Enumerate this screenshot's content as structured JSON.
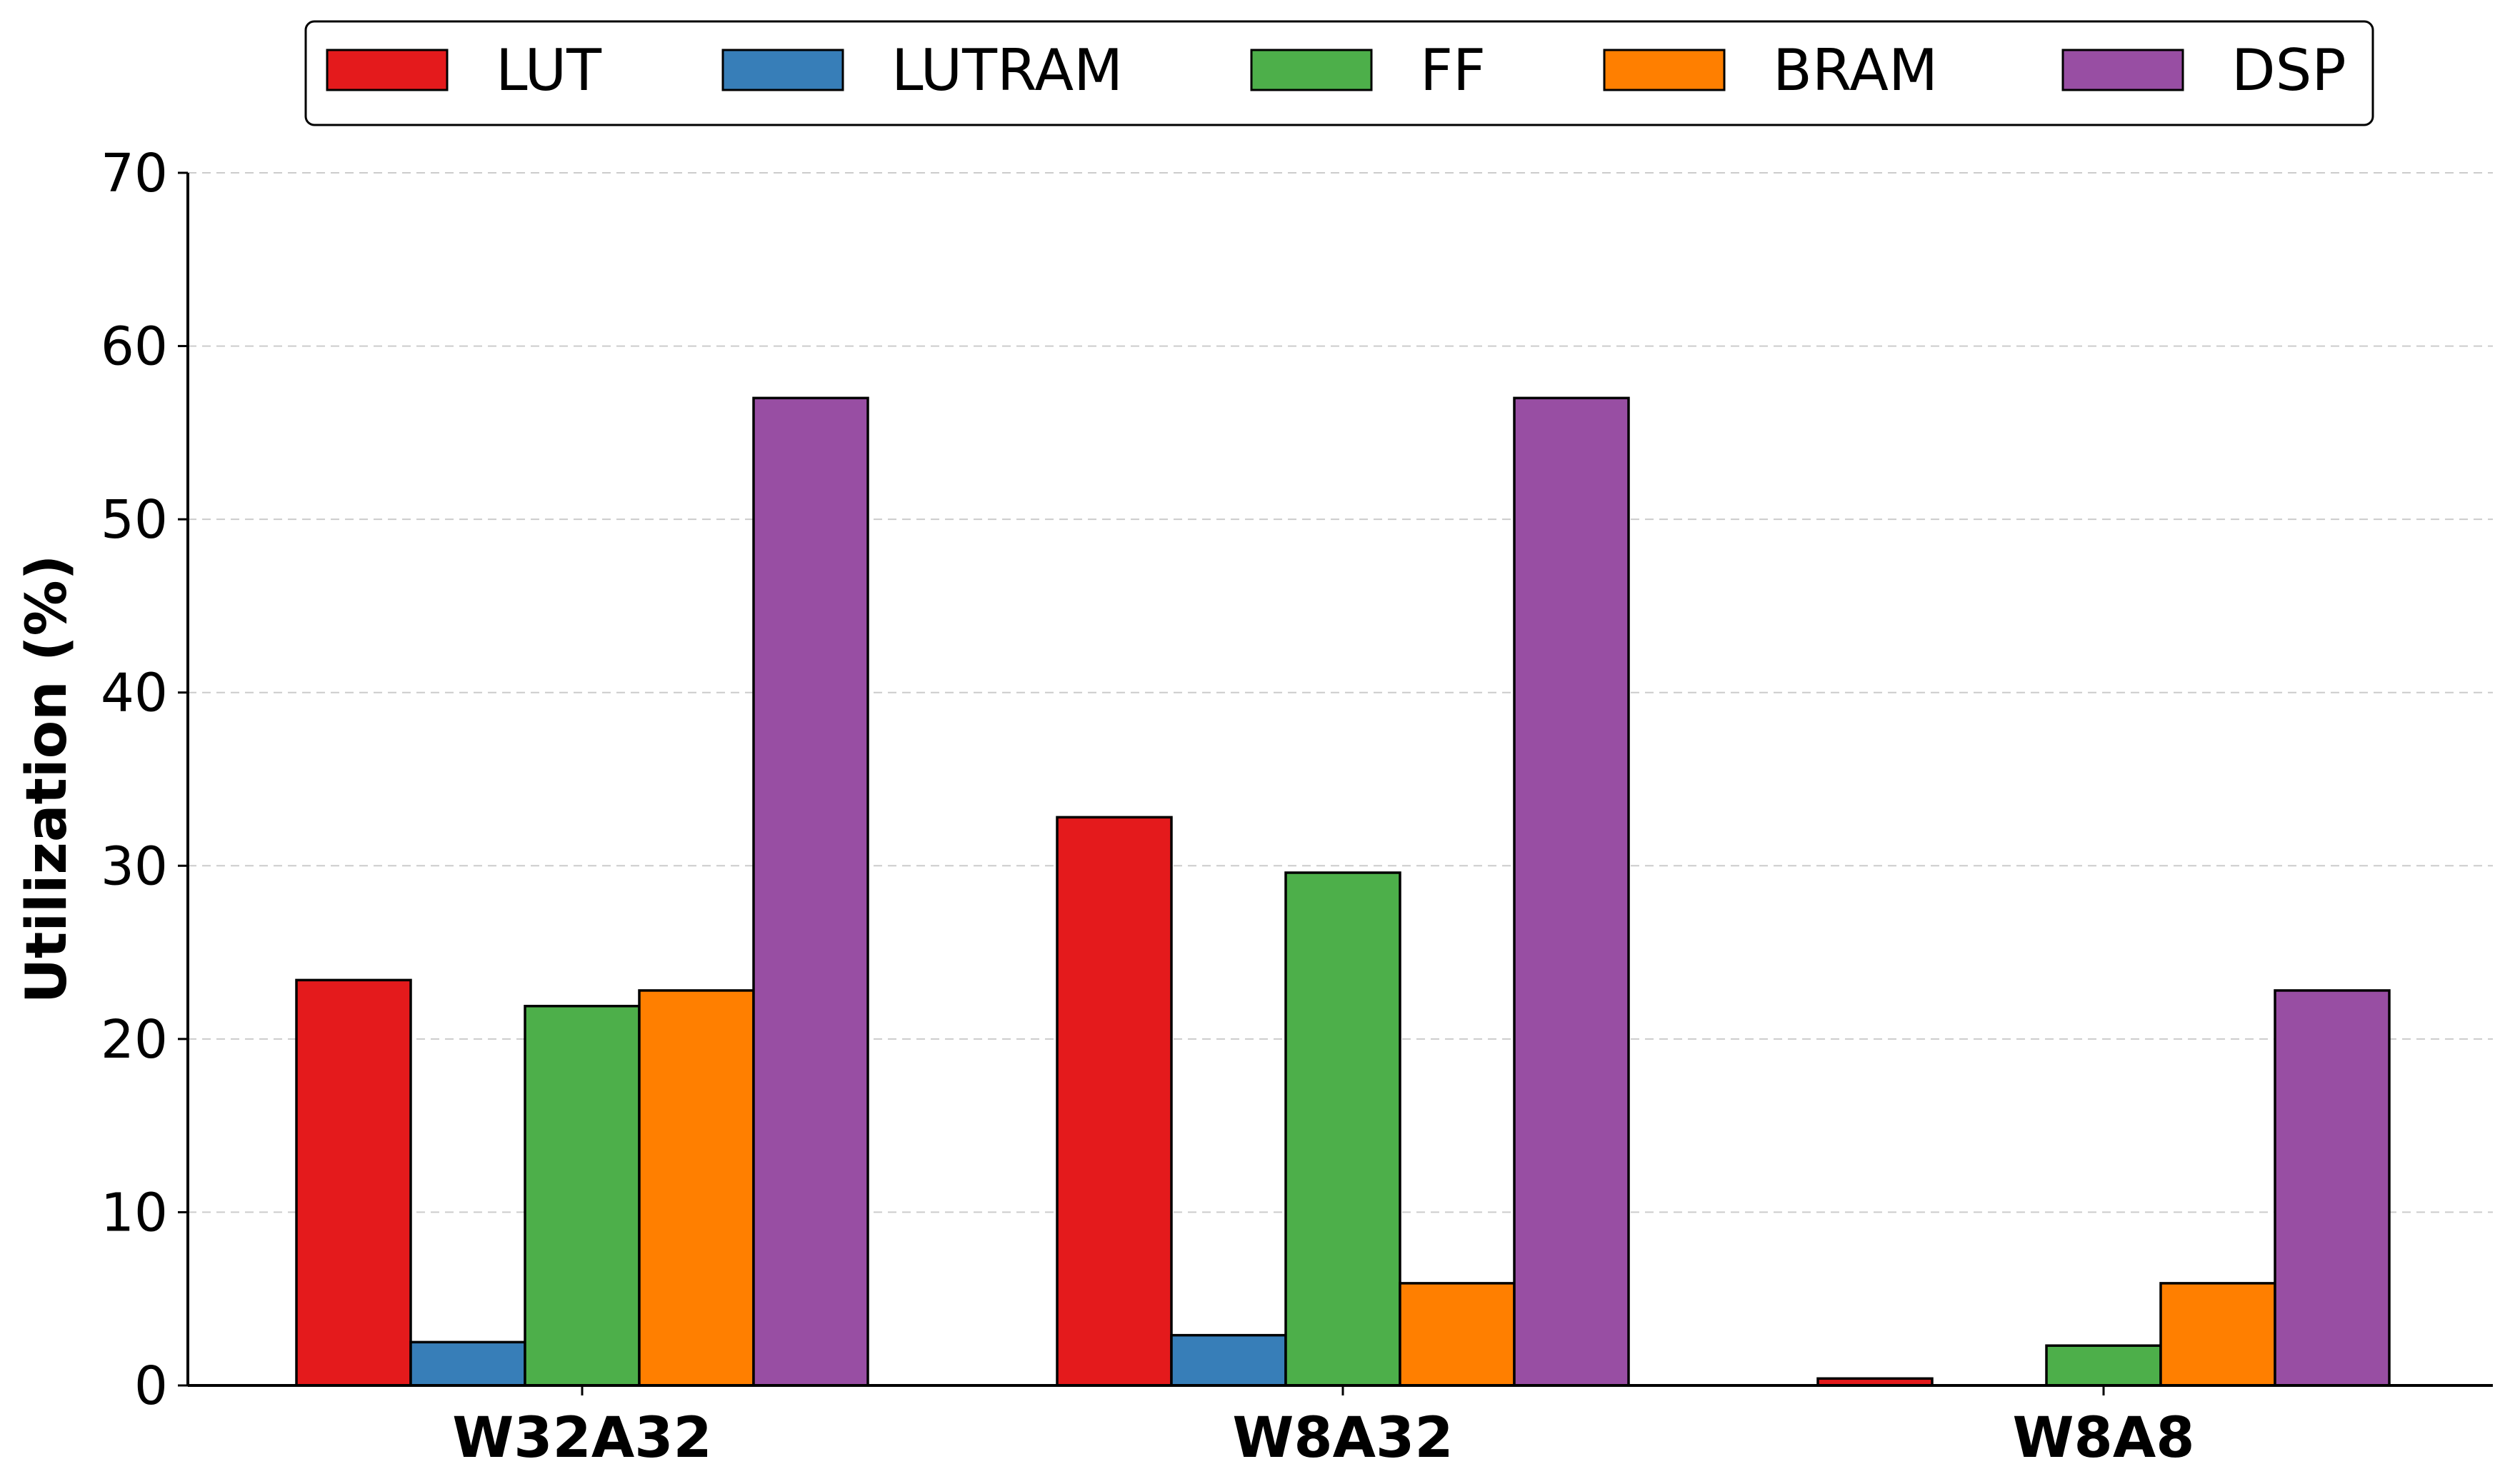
{
  "chart_data": {
    "type": "bar",
    "title": "",
    "xlabel": "",
    "ylabel": "Utilization (%)",
    "ylim": [
      0,
      70
    ],
    "yticks": [
      0,
      10,
      20,
      30,
      40,
      50,
      60,
      70
    ],
    "grid": "y-dashed",
    "legend_position": "top-center",
    "categories": [
      "W32A32",
      "W8A32",
      "W8A8"
    ],
    "series": [
      {
        "name": "LUT",
        "color": "#e41a1c",
        "values": [
          23.4,
          32.8,
          0.4
        ]
      },
      {
        "name": "LUTRAM",
        "color": "#377eb8",
        "values": [
          2.5,
          2.9,
          0.0
        ]
      },
      {
        "name": "FF",
        "color": "#4daf4a",
        "values": [
          21.9,
          29.6,
          2.3
        ]
      },
      {
        "name": "BRAM",
        "color": "#ff7f00",
        "values": [
          22.8,
          5.9,
          5.9
        ]
      },
      {
        "name": "DSP",
        "color": "#984ea3",
        "values": [
          57.0,
          57.0,
          22.8
        ]
      }
    ]
  }
}
